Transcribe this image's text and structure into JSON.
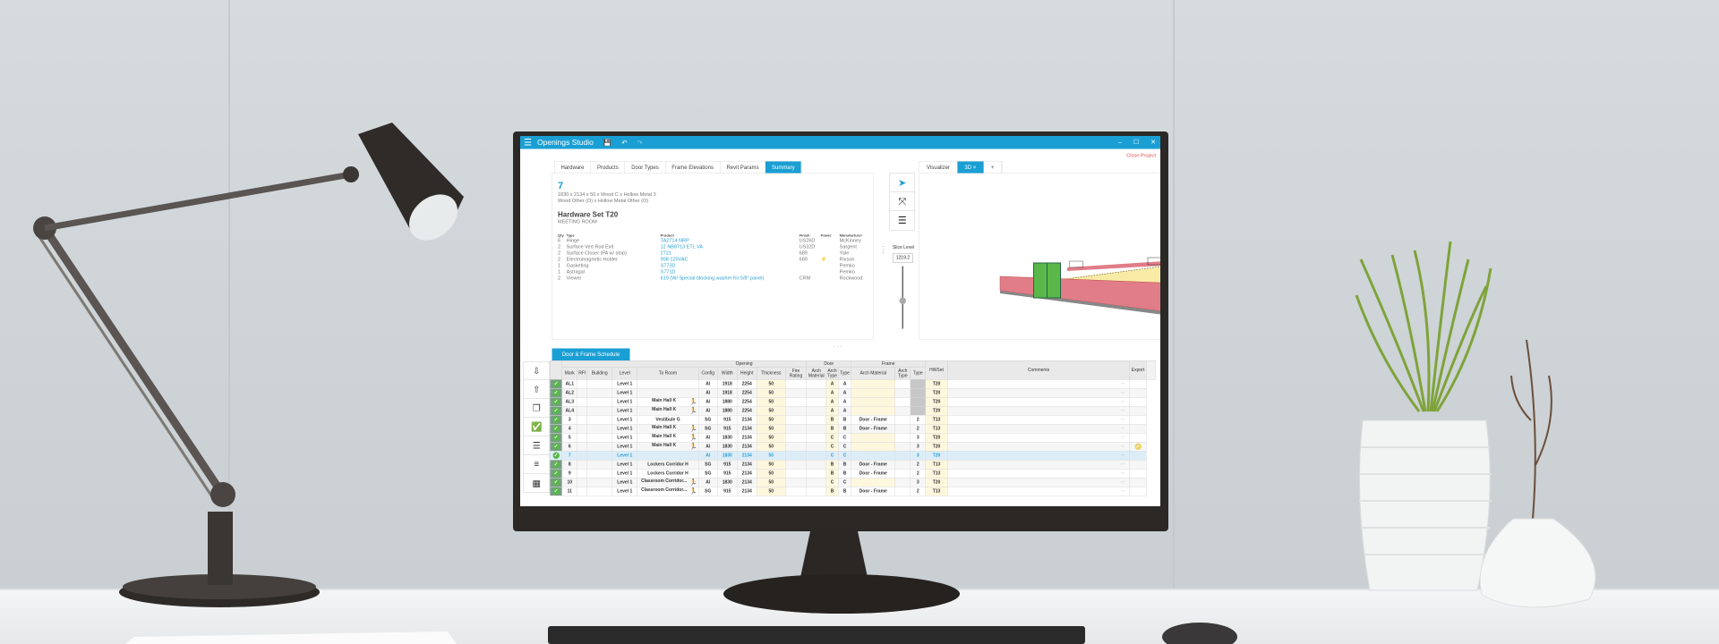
{
  "app": {
    "title": "Openings Studio",
    "close_project": "Close Project",
    "accent": "#1a9fd4"
  },
  "tabs": [
    {
      "label": "Hardware",
      "active": false
    },
    {
      "label": "Products",
      "active": false
    },
    {
      "label": "Door Types",
      "active": false
    },
    {
      "label": "Frame Elevations",
      "active": false
    },
    {
      "label": "Revit Params",
      "active": false
    },
    {
      "label": "Summary",
      "active": true
    }
  ],
  "summary": {
    "opening": "7",
    "desc1": "1830 x 2134 x 50 x Wood C x Hollow Metal 3",
    "desc2": "Wood Other (O) x Hollow Metal Other (O)",
    "hw_set": "Hardware Set T20",
    "room": "MEETING ROOM",
    "columns": {
      "qty": "Qty",
      "type": "Type",
      "product": "Product",
      "finish": "Finish",
      "power": "Power",
      "manufacturer": "Manufacturer"
    },
    "items": [
      {
        "qty": "6",
        "type": "Hinge",
        "product": "TA2714 NRP",
        "finish": "US26D",
        "power": "",
        "manufacturer": "McKinney"
      },
      {
        "qty": "2",
        "type": "Surface Vert Rod Exit",
        "product": "12 NB8713 ETL VA",
        "finish": "US32D",
        "power": "",
        "manufacturer": "Sargent"
      },
      {
        "qty": "2",
        "type": "Surface Closer (PA w/ stop)",
        "product": "2721",
        "finish": "689",
        "power": "",
        "manufacturer": "Yale"
      },
      {
        "qty": "2",
        "type": "Electromagnetic Holder",
        "product": "998 120VAC",
        "finish": "689",
        "power": "⚡",
        "manufacturer": "Rixson"
      },
      {
        "qty": "1",
        "type": "Gasketing",
        "product": "S773D",
        "finish": "",
        "power": "",
        "manufacturer": "Pemko"
      },
      {
        "qty": "1",
        "type": "Astragal",
        "product": "S771D",
        "finish": "",
        "power": "",
        "manufacturer": "Pemko"
      },
      {
        "qty": "2",
        "type": "Viewer",
        "product": "619 (W/ Special blocking washer for 5/8\" panel)",
        "finish": "CRM",
        "power": "",
        "manufacturer": "Rockwood"
      }
    ]
  },
  "tools": {
    "slice_label": "Slice Level",
    "slice_value": "1219.2",
    "slider_level": 0.55
  },
  "visualizer": {
    "tab": "Visualizer",
    "view_tab": "3D",
    "close": "×",
    "add": "+"
  },
  "schedule": {
    "tab": "Door & Frame Schedule",
    "groups": {
      "opening": "Opening",
      "door": "Door",
      "frame": "Frame"
    },
    "columns": {
      "mark": "Mark",
      "rfi": "RFI",
      "building": "Building",
      "level": "Level",
      "to_room": "To Room",
      "config": "Config",
      "width": "Width",
      "height": "Height",
      "thickness": "Thickness",
      "fire_rating": "Fire Rating",
      "door_arch_material": "Arch Material",
      "door_arch_type": "Arch Type",
      "door_type": "Type",
      "frame_arch_material": "Arch Material",
      "frame_arch_type": "Arch Type",
      "frame_type": "Type",
      "hwset": "HWSet",
      "comments": "Comments",
      "export": "Export"
    },
    "rows": [
      {
        "mark": "AL1",
        "level": "Level 1",
        "to_room": "",
        "egress": false,
        "config": "Al",
        "width": "1918",
        "height": "2254",
        "thickness": "50",
        "door_arch_type": "A",
        "door_type": "A",
        "frame_arch_material": "",
        "frame_type": "",
        "hwset": "T20",
        "export": false,
        "selected": false
      },
      {
        "mark": "AL2",
        "level": "Level 1",
        "to_room": "",
        "egress": false,
        "config": "Al",
        "width": "1918",
        "height": "2254",
        "thickness": "50",
        "door_arch_type": "A",
        "door_type": "A",
        "frame_arch_material": "",
        "frame_type": "",
        "hwset": "T20",
        "export": false,
        "selected": false
      },
      {
        "mark": "AL3",
        "level": "Level 1",
        "to_room": "Main Hall K",
        "egress": true,
        "config": "Al",
        "width": "1880",
        "height": "2254",
        "thickness": "50",
        "door_arch_type": "A",
        "door_type": "A",
        "frame_arch_material": "",
        "frame_type": "",
        "hwset": "T20",
        "export": false,
        "selected": false
      },
      {
        "mark": "AL4",
        "level": "Level 1",
        "to_room": "Main Hall K",
        "egress": true,
        "config": "Al",
        "width": "1880",
        "height": "2254",
        "thickness": "50",
        "door_arch_type": "A",
        "door_type": "A",
        "frame_arch_material": "",
        "frame_type": "",
        "hwset": "T20",
        "export": false,
        "selected": false
      },
      {
        "mark": "3",
        "level": "Level 1",
        "to_room": "Vestibule G",
        "egress": false,
        "config": "SG",
        "width": "915",
        "height": "2134",
        "thickness": "50",
        "door_arch_type": "B",
        "door_type": "B",
        "frame_arch_material": "Door - Frame",
        "frame_type": "2",
        "hwset": "T13",
        "export": false,
        "selected": false
      },
      {
        "mark": "4",
        "level": "Level 1",
        "to_room": "Main Hall K",
        "egress": true,
        "config": "SG",
        "width": "915",
        "height": "2134",
        "thickness": "50",
        "door_arch_type": "B",
        "door_type": "B",
        "frame_arch_material": "Door - Frame",
        "frame_type": "2",
        "hwset": "T13",
        "export": false,
        "selected": false
      },
      {
        "mark": "5",
        "level": "Level 1",
        "to_room": "Main Hall K",
        "egress": true,
        "config": "Al",
        "width": "1830",
        "height": "2134",
        "thickness": "50",
        "door_arch_type": "C",
        "door_type": "C",
        "frame_arch_material": "",
        "frame_type": "3",
        "hwset": "T20",
        "export": false,
        "selected": false
      },
      {
        "mark": "6",
        "level": "Level 1",
        "to_room": "Main Hall K",
        "egress": true,
        "config": "Al",
        "width": "1830",
        "height": "2134",
        "thickness": "50",
        "door_arch_type": "C",
        "door_type": "C",
        "frame_arch_material": "",
        "frame_type": "3",
        "hwset": "T20",
        "export": true,
        "selected": false
      },
      {
        "mark": "7",
        "level": "Level 1",
        "to_room": "",
        "egress": false,
        "config": "Al",
        "width": "1830",
        "height": "2134",
        "thickness": "50",
        "door_arch_type": "C",
        "door_type": "C",
        "frame_arch_material": "",
        "frame_type": "3",
        "hwset": "T20",
        "export": false,
        "selected": true
      },
      {
        "mark": "8",
        "level": "Level 1",
        "to_room": "Lockers Corridor H",
        "egress": false,
        "config": "SG",
        "width": "915",
        "height": "2134",
        "thickness": "50",
        "door_arch_type": "B",
        "door_type": "B",
        "frame_arch_material": "Door - Frame",
        "frame_type": "2",
        "hwset": "T13",
        "export": false,
        "selected": false
      },
      {
        "mark": "9",
        "level": "Level 1",
        "to_room": "Lockers Corridor H",
        "egress": false,
        "config": "SG",
        "width": "915",
        "height": "2134",
        "thickness": "50",
        "door_arch_type": "B",
        "door_type": "B",
        "frame_arch_material": "Door - Frame",
        "frame_type": "2",
        "hwset": "T13",
        "export": false,
        "selected": false
      },
      {
        "mark": "10",
        "level": "Level 1",
        "to_room": "Classroom Corridor...",
        "egress": true,
        "config": "Al",
        "width": "1830",
        "height": "2134",
        "thickness": "50",
        "door_arch_type": "C",
        "door_type": "C",
        "frame_arch_material": "",
        "frame_type": "3",
        "hwset": "T20",
        "export": false,
        "selected": false
      },
      {
        "mark": "11",
        "level": "Level 1",
        "to_room": "Classroom Corridor...",
        "egress": true,
        "config": "SG",
        "width": "915",
        "height": "2134",
        "thickness": "50",
        "door_arch_type": "B",
        "door_type": "B",
        "frame_arch_material": "Door - Frame",
        "frame_type": "2",
        "hwset": "T13",
        "export": false,
        "selected": false
      }
    ]
  }
}
